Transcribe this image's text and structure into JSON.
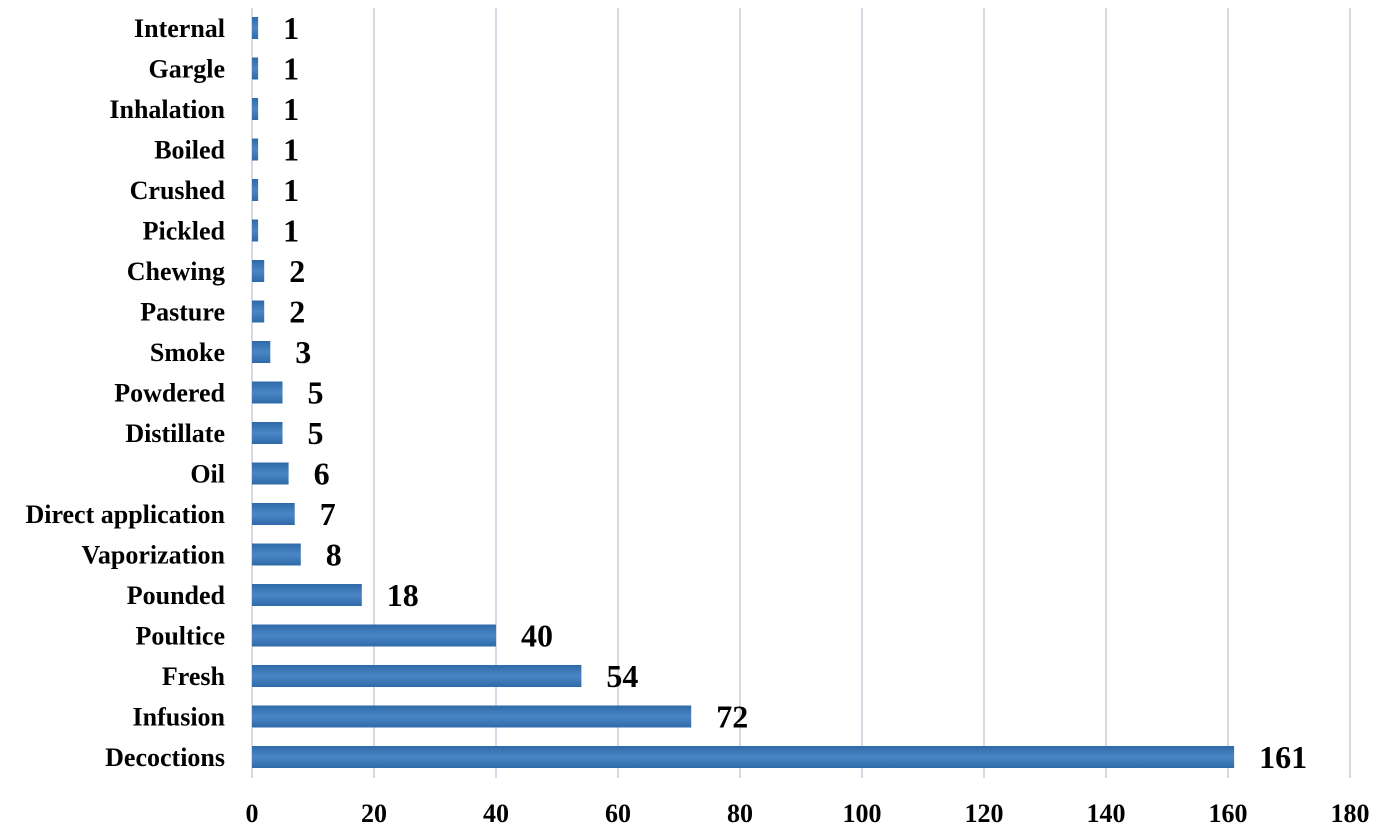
{
  "chart_data": {
    "type": "bar",
    "orientation": "horizontal",
    "categories": [
      "Decoctions",
      "Infusion",
      "Fresh",
      "Poultice",
      "Pounded",
      "Vaporization",
      "Direct application",
      "Oil",
      "Distillate",
      "Powdered",
      "Smoke",
      "Pasture",
      "Chewing",
      "Pickled",
      "Crushed",
      "Boiled",
      "Inhalation",
      "Gargle",
      "Internal"
    ],
    "values": [
      161,
      72,
      54,
      40,
      18,
      8,
      7,
      6,
      5,
      5,
      3,
      2,
      2,
      1,
      1,
      1,
      1,
      1,
      1
    ],
    "xlim": [
      0,
      180
    ],
    "xticks": [
      0,
      20,
      40,
      60,
      80,
      100,
      120,
      140,
      160,
      180
    ],
    "grid": "vertical",
    "legend": "none",
    "bar_color": "#4a86c5",
    "bar_color_dark": "#2f6aa8",
    "grid_color": "#d9d9e3"
  }
}
